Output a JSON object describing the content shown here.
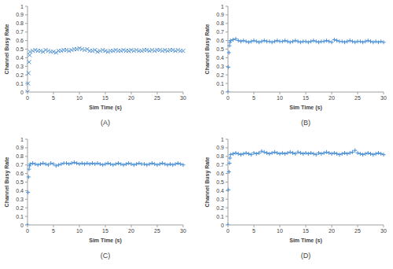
{
  "chart_data": [
    {
      "type": "scatter",
      "title": "(A)",
      "x_label": "Sim Time (s)",
      "y_label": "Channel Busy Rate",
      "marker": "x",
      "color": "#4a8fd6",
      "grid": false,
      "xlim": [
        0,
        30
      ],
      "xticks": [
        0,
        5,
        10,
        15,
        20,
        25,
        30
      ],
      "ylim": [
        0,
        1
      ],
      "yticks": [
        0,
        0.1,
        0.2,
        0.3,
        0.4,
        0.5,
        0.6,
        0.7,
        0.8,
        0.9,
        1
      ],
      "x": [
        0,
        0.1,
        0.2,
        0.3,
        0.4,
        0.5,
        1,
        1.5,
        2,
        2.5,
        3,
        3.5,
        4,
        4.5,
        5,
        5.5,
        6,
        6.5,
        7,
        7.5,
        8,
        8.5,
        9,
        9.5,
        10,
        10.5,
        11,
        11.5,
        12,
        12.5,
        13,
        13.5,
        14,
        14.5,
        15,
        15.5,
        16,
        16.5,
        17,
        17.5,
        18,
        18.5,
        19,
        19.5,
        20,
        20.5,
        21,
        21.5,
        22,
        22.5,
        23,
        23.5,
        24,
        24.5,
        25,
        25.5,
        26,
        26.5,
        27,
        27.5,
        28,
        28.5,
        29,
        29.5,
        30
      ],
      "values": [
        0,
        0.1,
        0.22,
        0.35,
        0.43,
        0.47,
        0.48,
        0.49,
        0.48,
        0.48,
        0.47,
        0.49,
        0.48,
        0.47,
        0.47,
        0.46,
        0.48,
        0.48,
        0.49,
        0.49,
        0.48,
        0.49,
        0.5,
        0.5,
        0.51,
        0.5,
        0.49,
        0.5,
        0.48,
        0.48,
        0.49,
        0.47,
        0.48,
        0.49,
        0.48,
        0.47,
        0.48,
        0.48,
        0.49,
        0.48,
        0.48,
        0.49,
        0.48,
        0.48,
        0.49,
        0.48,
        0.49,
        0.48,
        0.48,
        0.49,
        0.49,
        0.48,
        0.49,
        0.48,
        0.49,
        0.49,
        0.48,
        0.49,
        0.48,
        0.49,
        0.49,
        0.48,
        0.49,
        0.48,
        0.48
      ]
    },
    {
      "type": "scatter",
      "title": "(B)",
      "x_label": "Sim Time (s)",
      "y_label": "Channel Busy Rate",
      "marker": "+",
      "color": "#4a8fd6",
      "grid": false,
      "xlim": [
        0,
        30
      ],
      "xticks": [
        0,
        5,
        10,
        15,
        20,
        25,
        30
      ],
      "ylim": [
        0,
        1
      ],
      "yticks": [
        0,
        0.1,
        0.2,
        0.3,
        0.4,
        0.5,
        0.6,
        0.7,
        0.8,
        0.9,
        1
      ],
      "x": [
        0,
        0.1,
        0.2,
        0.3,
        0.4,
        0.5,
        1,
        1.5,
        2,
        2.5,
        3,
        3.5,
        4,
        4.5,
        5,
        5.5,
        6,
        6.5,
        7,
        7.5,
        8,
        8.5,
        9,
        9.5,
        10,
        10.5,
        11,
        11.5,
        12,
        12.5,
        13,
        13.5,
        14,
        14.5,
        15,
        15.5,
        16,
        16.5,
        17,
        17.5,
        18,
        18.5,
        19,
        19.5,
        20,
        20.5,
        21,
        21.5,
        22,
        22.5,
        23,
        23.5,
        24,
        24.5,
        25,
        25.5,
        26,
        26.5,
        27,
        27.5,
        28,
        28.5,
        29,
        29.5,
        30
      ],
      "values": [
        0,
        0.29,
        0.46,
        0.54,
        0.58,
        0.6,
        0.61,
        0.62,
        0.6,
        0.59,
        0.6,
        0.59,
        0.58,
        0.59,
        0.6,
        0.59,
        0.58,
        0.59,
        0.6,
        0.59,
        0.59,
        0.58,
        0.59,
        0.6,
        0.59,
        0.59,
        0.6,
        0.59,
        0.58,
        0.59,
        0.6,
        0.59,
        0.58,
        0.59,
        0.59,
        0.58,
        0.59,
        0.6,
        0.59,
        0.58,
        0.59,
        0.59,
        0.6,
        0.59,
        0.58,
        0.61,
        0.6,
        0.59,
        0.59,
        0.58,
        0.59,
        0.6,
        0.59,
        0.58,
        0.59,
        0.59,
        0.58,
        0.59,
        0.6,
        0.59,
        0.58,
        0.59,
        0.58,
        0.59,
        0.58
      ]
    },
    {
      "type": "scatter",
      "title": "(C)",
      "x_label": "Sim Time (s)",
      "y_label": "Channel Busy Rate",
      "marker": "+",
      "color": "#4a8fd6",
      "grid": false,
      "xlim": [
        0,
        30
      ],
      "xticks": [
        0,
        5,
        10,
        15,
        20,
        25,
        30
      ],
      "ylim": [
        0,
        1
      ],
      "yticks": [
        0,
        0.1,
        0.2,
        0.3,
        0.4,
        0.5,
        0.6,
        0.7,
        0.8,
        0.9,
        1
      ],
      "x": [
        0,
        0.1,
        0.2,
        0.3,
        0.4,
        0.5,
        1,
        1.5,
        2,
        2.5,
        3,
        3.5,
        4,
        4.5,
        5,
        5.5,
        6,
        6.5,
        7,
        7.5,
        8,
        8.5,
        9,
        9.5,
        10,
        10.5,
        11,
        11.5,
        12,
        12.5,
        13,
        13.5,
        14,
        14.5,
        15,
        15.5,
        16,
        16.5,
        17,
        17.5,
        18,
        18.5,
        19,
        19.5,
        20,
        20.5,
        21,
        21.5,
        22,
        22.5,
        23,
        23.5,
        24,
        24.5,
        25,
        25.5,
        26,
        26.5,
        27,
        27.5,
        28,
        28.5,
        29,
        29.5,
        30
      ],
      "values": [
        0,
        0.38,
        0.56,
        0.65,
        0.69,
        0.71,
        0.72,
        0.71,
        0.7,
        0.71,
        0.72,
        0.71,
        0.7,
        0.72,
        0.71,
        0.69,
        0.7,
        0.71,
        0.72,
        0.72,
        0.71,
        0.72,
        0.73,
        0.72,
        0.71,
        0.72,
        0.71,
        0.72,
        0.71,
        0.72,
        0.71,
        0.72,
        0.71,
        0.7,
        0.71,
        0.72,
        0.71,
        0.7,
        0.71,
        0.72,
        0.71,
        0.7,
        0.71,
        0.72,
        0.71,
        0.7,
        0.71,
        0.72,
        0.71,
        0.71,
        0.7,
        0.71,
        0.72,
        0.71,
        0.7,
        0.71,
        0.72,
        0.71,
        0.7,
        0.71,
        0.7,
        0.71,
        0.72,
        0.71,
        0.7
      ]
    },
    {
      "type": "scatter",
      "title": "(D)",
      "x_label": "Sim Time (s)",
      "y_label": "Channel Busy Rate",
      "marker": "+",
      "color": "#4a8fd6",
      "grid": false,
      "xlim": [
        0,
        30
      ],
      "xticks": [
        0,
        5,
        10,
        15,
        20,
        25,
        30
      ],
      "ylim": [
        0,
        1
      ],
      "yticks": [
        0,
        0.1,
        0.2,
        0.3,
        0.4,
        0.5,
        0.6,
        0.7,
        0.8,
        0.9,
        1
      ],
      "x": [
        0,
        0.1,
        0.2,
        0.3,
        0.4,
        0.5,
        1,
        1.5,
        2,
        2.5,
        3,
        3.5,
        4,
        4.5,
        5,
        5.5,
        6,
        6.5,
        7,
        7.5,
        8,
        8.5,
        9,
        9.5,
        10,
        10.5,
        11,
        11.5,
        12,
        12.5,
        13,
        13.5,
        14,
        14.5,
        15,
        15.5,
        16,
        16.5,
        17,
        17.5,
        18,
        18.5,
        19,
        19.5,
        20,
        20.5,
        21,
        21.5,
        22,
        22.5,
        23,
        23.5,
        24,
        24.5,
        25,
        25.5,
        26,
        26.5,
        27,
        27.5,
        28,
        28.5,
        29,
        29.5,
        30
      ],
      "values": [
        0,
        0.41,
        0.62,
        0.72,
        0.78,
        0.82,
        0.83,
        0.84,
        0.83,
        0.82,
        0.83,
        0.84,
        0.83,
        0.82,
        0.84,
        0.83,
        0.84,
        0.86,
        0.85,
        0.84,
        0.83,
        0.84,
        0.85,
        0.84,
        0.83,
        0.84,
        0.83,
        0.84,
        0.85,
        0.84,
        0.83,
        0.85,
        0.84,
        0.83,
        0.84,
        0.83,
        0.84,
        0.83,
        0.82,
        0.84,
        0.83,
        0.84,
        0.85,
        0.84,
        0.83,
        0.84,
        0.83,
        0.82,
        0.83,
        0.84,
        0.83,
        0.84,
        0.85,
        0.87,
        0.84,
        0.83,
        0.82,
        0.83,
        0.84,
        0.83,
        0.82,
        0.83,
        0.84,
        0.83,
        0.82
      ]
    }
  ]
}
